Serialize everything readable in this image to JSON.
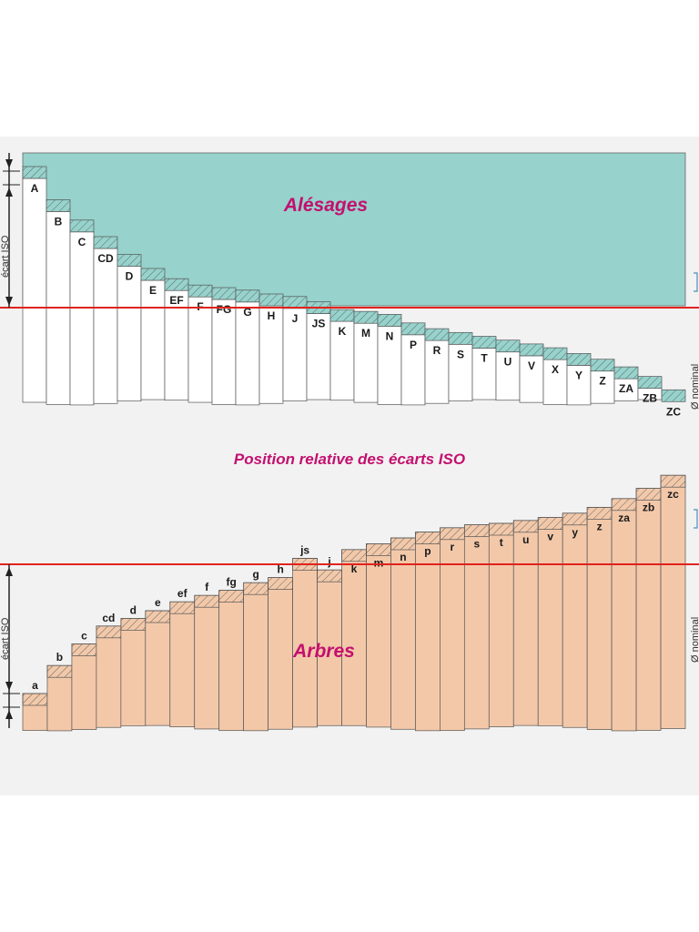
{
  "colors": {
    "background": "#ffffff",
    "paper": "#f2f2f2",
    "holes_fill": "#97d2cc",
    "shafts_fill": "#f3c8a9",
    "zero_line": "#e0231e",
    "title_pink": "#c3106f",
    "hatch": "#5a6a66",
    "bar_outline": "#555555"
  },
  "top_title": "Alésages",
  "middle_title": "Position relative des écarts ISO",
  "bottom_title": "Arbres",
  "top_axis_label": "écart ISO",
  "bottom_axis_label": "écart ISO",
  "top_nominal_label": "Ø nominal",
  "bottom_nominal_label": "Ø nominal",
  "holes": [
    {
      "label": "A",
      "side": "above",
      "level": 1.0
    },
    {
      "label": "B",
      "side": "above",
      "level": 0.74
    },
    {
      "label": "C",
      "side": "above",
      "level": 0.58
    },
    {
      "label": "CD",
      "side": "above",
      "level": 0.45
    },
    {
      "label": "D",
      "side": "above",
      "level": 0.31
    },
    {
      "label": "E",
      "side": "above",
      "level": 0.2
    },
    {
      "label": "EF",
      "side": "above",
      "level": 0.12
    },
    {
      "label": "F",
      "side": "above",
      "level": 0.07
    },
    {
      "label": "FG",
      "side": "above",
      "level": 0.05
    },
    {
      "label": "G",
      "side": "above",
      "level": 0.03
    },
    {
      "label": "H",
      "side": "above",
      "level": 0.0
    },
    {
      "label": "J",
      "side": "above",
      "level": -0.02
    },
    {
      "label": "JS",
      "side": "center",
      "level": 0.0
    },
    {
      "label": "K",
      "side": "below",
      "level": 0.02
    },
    {
      "label": "M",
      "side": "below",
      "level": 0.04
    },
    {
      "label": "N",
      "side": "below",
      "level": 0.07
    },
    {
      "label": "P",
      "side": "below",
      "level": 0.16
    },
    {
      "label": "R",
      "side": "below",
      "level": 0.22
    },
    {
      "label": "S",
      "side": "below",
      "level": 0.26
    },
    {
      "label": "T",
      "side": "below",
      "level": 0.3
    },
    {
      "label": "U",
      "side": "below",
      "level": 0.34
    },
    {
      "label": "V",
      "side": "below",
      "level": 0.38
    },
    {
      "label": "X",
      "side": "below",
      "level": 0.42
    },
    {
      "label": "Y",
      "side": "below",
      "level": 0.48
    },
    {
      "label": "Z",
      "side": "below",
      "level": 0.54
    },
    {
      "label": "ZA",
      "side": "below",
      "level": 0.62
    },
    {
      "label": "ZB",
      "side": "below",
      "level": 0.72
    },
    {
      "label": "ZC",
      "side": "below",
      "level": 0.86
    }
  ],
  "shafts": [
    {
      "label": "a",
      "side": "below",
      "level": 1.0
    },
    {
      "label": "b",
      "side": "below",
      "level": 0.78
    },
    {
      "label": "c",
      "side": "below",
      "level": 0.61
    },
    {
      "label": "cd",
      "side": "below",
      "level": 0.47
    },
    {
      "label": "d",
      "side": "below",
      "level": 0.41
    },
    {
      "label": "e",
      "side": "below",
      "level": 0.35
    },
    {
      "label": "ef",
      "side": "below",
      "level": 0.28
    },
    {
      "label": "f",
      "side": "below",
      "level": 0.23
    },
    {
      "label": "fg",
      "side": "below",
      "level": 0.19
    },
    {
      "label": "g",
      "side": "below",
      "level": 0.13
    },
    {
      "label": "h",
      "side": "below",
      "level": 0.09
    },
    {
      "label": "js",
      "side": "center",
      "level": 0.0
    },
    {
      "label": "j",
      "side": "below",
      "level": 0.03
    },
    {
      "label": "k",
      "side": "above",
      "level": 0.02
    },
    {
      "label": "m",
      "side": "above",
      "level": 0.06
    },
    {
      "label": "n",
      "side": "above",
      "level": 0.1
    },
    {
      "label": "p",
      "side": "above",
      "level": 0.14
    },
    {
      "label": "r",
      "side": "above",
      "level": 0.17
    },
    {
      "label": "s",
      "side": "above",
      "level": 0.19
    },
    {
      "label": "t",
      "side": "above",
      "level": 0.2
    },
    {
      "label": "u",
      "side": "above",
      "level": 0.22
    },
    {
      "label": "v",
      "side": "above",
      "level": 0.24
    },
    {
      "label": "y",
      "side": "above",
      "level": 0.27
    },
    {
      "label": "z",
      "side": "above",
      "level": 0.31
    },
    {
      "label": "za",
      "side": "above",
      "level": 0.37
    },
    {
      "label": "zb",
      "side": "above",
      "level": 0.44
    },
    {
      "label": "zc",
      "side": "above",
      "level": 0.53
    }
  ]
}
